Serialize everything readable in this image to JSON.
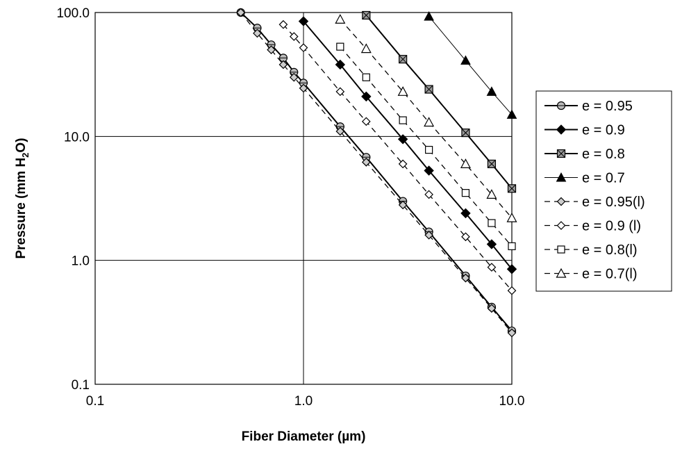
{
  "chart_data": {
    "type": "line",
    "xlabel": "Fiber Diameter (µm)",
    "ylabel": "Pressure (mm H2O)",
    "xscale": "log",
    "yscale": "log",
    "xlim": [
      0.1,
      10.0
    ],
    "ylim": [
      0.1,
      100.0
    ],
    "xticks": [
      "0.1",
      "1.0",
      "10.0"
    ],
    "yticks": [
      "0.1",
      "1.0",
      "10.0",
      "100.0"
    ],
    "grid": true,
    "legend_position": "right",
    "series": [
      {
        "name": "e = 0.95",
        "line": "solid",
        "marker": "circle-cross",
        "x": [
          0.5,
          0.6,
          0.7,
          0.8,
          0.9,
          1.0,
          1.5,
          2.0,
          3.0,
          4.0,
          6.0,
          8.0,
          10.0
        ],
        "y": [
          100.0,
          75.0,
          55.0,
          43.0,
          33.0,
          27.0,
          12.0,
          6.8,
          3.0,
          1.7,
          0.75,
          0.42,
          0.27
        ]
      },
      {
        "name": "e = 0.9",
        "line": "solid",
        "marker": "filled-diamond",
        "x": [
          1.0,
          1.5,
          2.0,
          3.0,
          4.0,
          6.0,
          8.0,
          10.0
        ],
        "y": [
          85.0,
          38.0,
          21.0,
          9.5,
          5.3,
          2.4,
          1.35,
          0.85
        ]
      },
      {
        "name": "e = 0.8",
        "line": "solid",
        "marker": "crossed-square",
        "x": [
          2.0,
          3.0,
          4.0,
          6.0,
          8.0,
          10.0
        ],
        "y": [
          95.0,
          42.0,
          24.0,
          10.7,
          6.0,
          3.8
        ]
      },
      {
        "name": "e = 0.7",
        "line": "thin",
        "marker": "filled-triangle",
        "x": [
          4.0,
          6.0,
          8.0,
          10.0
        ],
        "y": [
          93.0,
          41.0,
          23.0,
          15.0
        ]
      },
      {
        "name": "e = 0.95(l)",
        "line": "dashed",
        "marker": "shaded-diamond",
        "x": [
          0.5,
          0.6,
          0.7,
          0.8,
          0.9,
          1.0,
          1.5,
          2.0,
          3.0,
          4.0,
          6.0,
          8.0,
          10.0
        ],
        "y": [
          100.0,
          68.0,
          50.0,
          38.0,
          30.0,
          24.5,
          11.0,
          6.2,
          2.8,
          1.6,
          0.72,
          0.41,
          0.26
        ]
      },
      {
        "name": "e = 0.9 (l)",
        "line": "dashed",
        "marker": "open-diamond",
        "x": [
          0.8,
          0.9,
          1.0,
          1.5,
          2.0,
          3.0,
          4.0,
          6.0,
          8.0,
          10.0
        ],
        "y": [
          80.0,
          64.0,
          52.0,
          23.0,
          13.2,
          6.0,
          3.4,
          1.55,
          0.88,
          0.57
        ]
      },
      {
        "name": "e = 0.8(l)",
        "line": "dashed",
        "marker": "open-square",
        "x": [
          1.5,
          2.0,
          3.0,
          4.0,
          6.0,
          8.0,
          10.0
        ],
        "y": [
          53.0,
          30.0,
          13.5,
          7.8,
          3.5,
          2.0,
          1.3
        ]
      },
      {
        "name": "e = 0.7(l)",
        "line": "dashed",
        "marker": "open-triangle",
        "x": [
          1.5,
          2.0,
          3.0,
          4.0,
          6.0,
          8.0,
          10.0
        ],
        "y": [
          88.0,
          51.0,
          23.0,
          13.0,
          6.0,
          3.4,
          2.2
        ]
      }
    ]
  }
}
